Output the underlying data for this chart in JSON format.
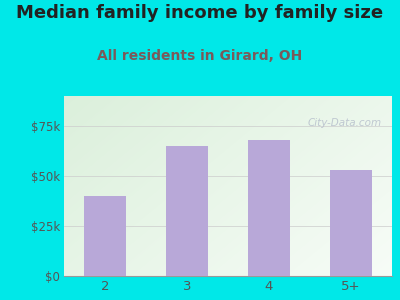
{
  "categories": [
    "2",
    "3",
    "4",
    "5+"
  ],
  "values": [
    40000,
    65000,
    68000,
    53000
  ],
  "bar_color": "#b8a8d8",
  "title": "Median family income by family size",
  "subtitle": "All residents in Girard, OH",
  "title_color": "#222222",
  "subtitle_color": "#7a5a5a",
  "background_color": "#00e8e8",
  "ylim": [
    0,
    90000
  ],
  "yticks": [
    0,
    25000,
    50000,
    75000
  ],
  "ytick_labels": [
    "$0",
    "$25k",
    "$50k",
    "$75k"
  ],
  "watermark": "City-Data.com",
  "title_fontsize": 13,
  "subtitle_fontsize": 10,
  "grad_topleft": [
    0.86,
    0.94,
    0.86
  ],
  "grad_bottomright": [
    0.97,
    0.99,
    0.97
  ]
}
